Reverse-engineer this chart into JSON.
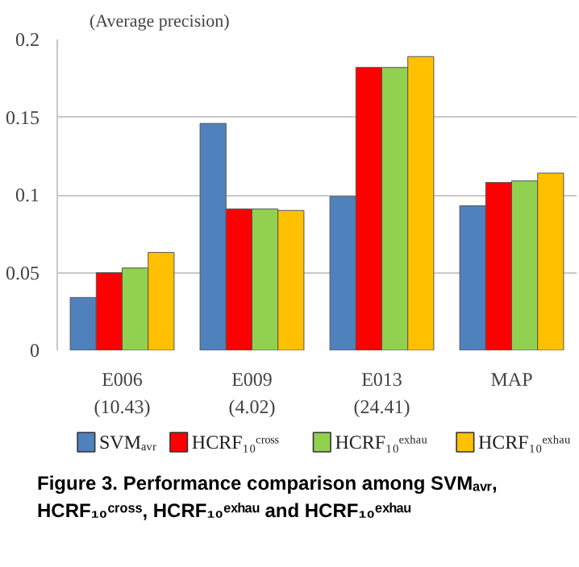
{
  "chart_data": {
    "type": "bar",
    "ylabel": "(Average precision)",
    "categories": [
      "E006\n(10.43)",
      "E009\n(4.02)",
      "E013\n(24.41)",
      "MAP"
    ],
    "series": [
      {
        "name": "SVMₐᵥᵣ",
        "color": "#4f81bd",
        "values": [
          0.034,
          0.146,
          0.099,
          0.093
        ]
      },
      {
        "name": "HCRF₁₀ᶜʳᵒˢˢ",
        "color": "#ff0000",
        "values": [
          0.05,
          0.091,
          0.182,
          0.108
        ]
      },
      {
        "name": "HCRF₁₀ᵉˣʰᵃᵘ",
        "color": "#92d050",
        "values": [
          0.053,
          0.091,
          0.182,
          0.109
        ]
      },
      {
        "name": "HCRF₁₀ᵉˣʰᵃᵘ",
        "color": "#ffc000",
        "values": [
          0.063,
          0.09,
          0.189,
          0.114
        ]
      }
    ],
    "ylim": [
      0,
      0.2
    ],
    "yticks": [
      0,
      0.05,
      0.1,
      0.15,
      0.2
    ],
    "grid": "y",
    "legend": "bottom",
    "annotations": [
      "Figure 3. Performance comparison among SVMₐᵥᵣ, HCRF₁₀ᶜʳᵒˢˢ, HCRF₁₀ᵉˣʰᵃᵘ and HCRF₁₀ᵉˣʰᵃᵘ"
    ]
  }
}
